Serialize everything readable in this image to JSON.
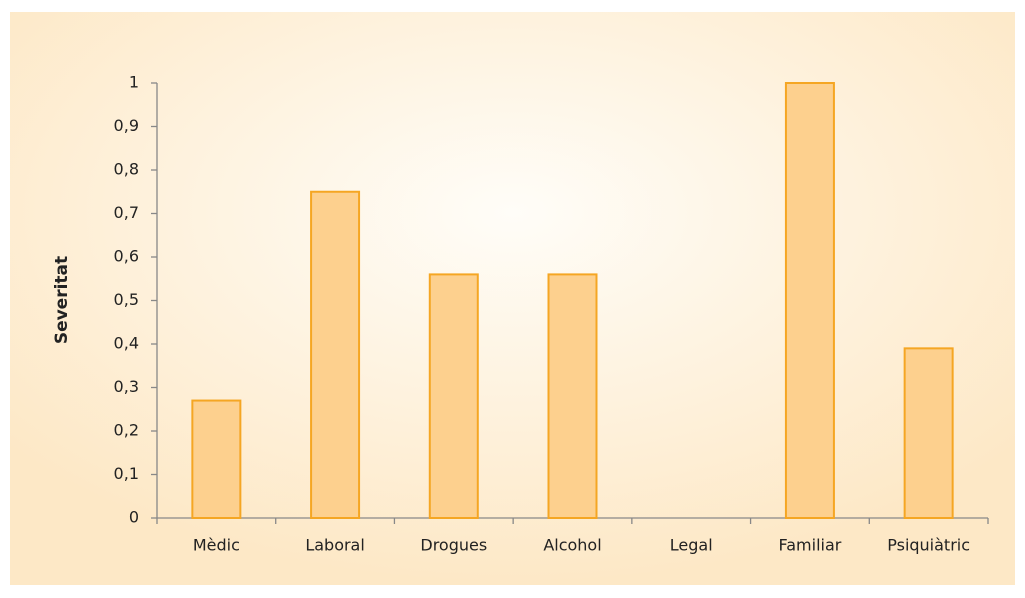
{
  "chart_data": {
    "type": "bar",
    "ylabel": "Severitat",
    "categories": [
      "Mèdic",
      "Laboral",
      "Drogues",
      "Alcohol",
      "Legal",
      "Familiar",
      "Psiquiàtric"
    ],
    "values": [
      0.27,
      0.75,
      0.56,
      0.56,
      0,
      1,
      0.39
    ],
    "color": "#fdd08e",
    "edge_color": "#f5a623",
    "ylim": [
      0,
      1
    ],
    "yticks": [
      0,
      {
        "value": 0.1,
        "label": "0,1"
      },
      {
        "value": 0.2,
        "label": "0,2"
      },
      {
        "value": 0.3,
        "label": "0,3"
      },
      {
        "value": 0.4,
        "label": "0,4"
      },
      {
        "value": 0.5,
        "label": "0,5"
      },
      {
        "value": 0.6,
        "label": "0,6"
      },
      {
        "value": 0.7,
        "label": "0,7"
      },
      {
        "value": 0.8,
        "label": "0,8"
      },
      {
        "value": 0.9,
        "label": "0,9"
      },
      1
    ],
    "grid": false
  }
}
